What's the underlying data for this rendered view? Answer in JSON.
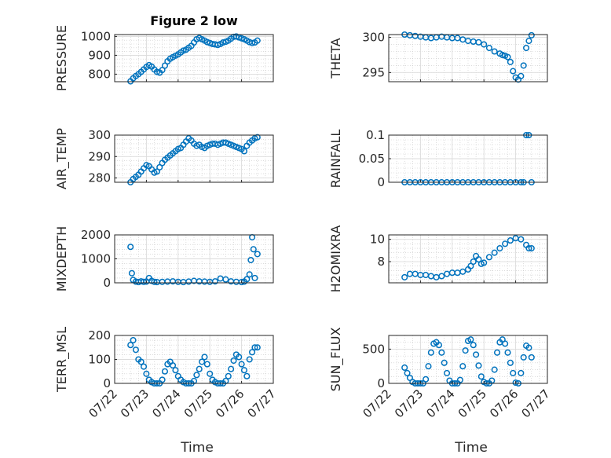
{
  "chart_data": [
    {
      "type": "scatter",
      "title": "Figure 2 low",
      "ylabel": "PRESSURE",
      "ylim": [
        760,
        1010
      ],
      "yticks": [
        800,
        900,
        1000
      ],
      "ytick_labels": [
        "800",
        "900",
        "1000"
      ],
      "xlim": [
        "07/22",
        "07/27"
      ],
      "grid": true,
      "series": [
        {
          "x": [
            "07/22 12:00",
            "07/22 14:00",
            "07/22 16:00",
            "07/22 18:00",
            "07/22 20:00",
            "07/22 22:00",
            "07/23 00:00",
            "07/23 02:00",
            "07/23 04:00",
            "07/23 06:00",
            "07/23 08:00",
            "07/23 10:00",
            "07/23 12:00",
            "07/23 14:00",
            "07/23 16:00",
            "07/23 18:00",
            "07/23 20:00",
            "07/23 22:00",
            "07/24 00:00",
            "07/24 02:00",
            "07/24 04:00",
            "07/24 06:00",
            "07/24 08:00",
            "07/24 10:00",
            "07/24 12:00",
            "07/24 14:00",
            "07/24 16:00",
            "07/24 18:00",
            "07/24 20:00",
            "07/24 22:00",
            "07/25 00:00",
            "07/25 02:00",
            "07/25 04:00",
            "07/25 06:00",
            "07/25 08:00",
            "07/25 10:00",
            "07/25 12:00",
            "07/25 14:00",
            "07/25 16:00",
            "07/25 18:00",
            "07/25 20:00",
            "07/25 22:00",
            "07/26 00:00",
            "07/26 02:00",
            "07/26 04:00",
            "07/26 06:00",
            "07/26 08:00",
            "07/26 10:00",
            "07/26 12:00"
          ],
          "y": [
            762,
            778,
            790,
            800,
            812,
            825,
            838,
            848,
            840,
            825,
            812,
            808,
            822,
            845,
            868,
            882,
            890,
            898,
            905,
            915,
            925,
            930,
            940,
            950,
            968,
            985,
            992,
            985,
            978,
            970,
            965,
            960,
            958,
            955,
            960,
            968,
            972,
            978,
            988,
            998,
            1000,
            995,
            990,
            985,
            978,
            970,
            965,
            968,
            978
          ]
        }
      ]
    },
    {
      "type": "scatter",
      "ylabel": "THETA",
      "ylim": [
        293.7,
        300.4
      ],
      "yticks": [
        295,
        300
      ],
      "ytick_labels": [
        "295",
        "300"
      ],
      "xlim": [
        "07/22",
        "07/27"
      ],
      "grid": true,
      "series": [
        {
          "x": [
            "07/22 12:00",
            "07/22 16:00",
            "07/22 20:00",
            "07/23 00:00",
            "07/23 04:00",
            "07/23 08:00",
            "07/23 12:00",
            "07/23 16:00",
            "07/23 20:00",
            "07/24 00:00",
            "07/24 04:00",
            "07/24 08:00",
            "07/24 12:00",
            "07/24 16:00",
            "07/24 20:00",
            "07/25 00:00",
            "07/25 04:00",
            "07/25 08:00",
            "07/25 12:00",
            "07/25 14:00",
            "07/25 16:00",
            "07/25 18:00",
            "07/25 20:00",
            "07/25 22:00",
            "07/26 00:00",
            "07/26 02:00",
            "07/26 04:00",
            "07/26 06:00",
            "07/26 08:00",
            "07/26 10:00",
            "07/26 12:00"
          ],
          "y": [
            300.4,
            300.3,
            300.2,
            300.1,
            300.0,
            299.9,
            300.0,
            300.1,
            300.0,
            299.9,
            299.9,
            299.7,
            299.5,
            299.4,
            299.3,
            299.0,
            298.5,
            298.0,
            297.7,
            297.5,
            297.4,
            297.2,
            296.5,
            295.2,
            294.3,
            294.0,
            294.5,
            296.0,
            298.5,
            299.5,
            300.3
          ]
        }
      ]
    },
    {
      "type": "scatter",
      "ylabel": "AIR_TEMP",
      "ylim": [
        278,
        300
      ],
      "yticks": [
        280,
        290,
        300
      ],
      "ytick_labels": [
        "280",
        "290",
        "300"
      ],
      "xlim": [
        "07/22",
        "07/27"
      ],
      "grid": true,
      "series": [
        {
          "x": [
            "07/22 12:00",
            "07/22 14:00",
            "07/22 16:00",
            "07/22 18:00",
            "07/22 20:00",
            "07/22 22:00",
            "07/23 00:00",
            "07/23 02:00",
            "07/23 04:00",
            "07/23 06:00",
            "07/23 08:00",
            "07/23 10:00",
            "07/23 12:00",
            "07/23 14:00",
            "07/23 16:00",
            "07/23 18:00",
            "07/23 20:00",
            "07/23 22:00",
            "07/24 00:00",
            "07/24 02:00",
            "07/24 04:00",
            "07/24 06:00",
            "07/24 08:00",
            "07/24 10:00",
            "07/24 12:00",
            "07/24 14:00",
            "07/24 16:00",
            "07/24 18:00",
            "07/24 20:00",
            "07/24 22:00",
            "07/25 00:00",
            "07/25 02:00",
            "07/25 04:00",
            "07/25 06:00",
            "07/25 08:00",
            "07/25 10:00",
            "07/25 12:00",
            "07/25 14:00",
            "07/25 16:00",
            "07/25 18:00",
            "07/25 20:00",
            "07/25 22:00",
            "07/26 00:00",
            "07/26 02:00",
            "07/26 04:00",
            "07/26 06:00",
            "07/26 08:00",
            "07/26 10:00",
            "07/26 12:00"
          ],
          "y": [
            278,
            279.5,
            280.5,
            281.5,
            283,
            284.5,
            286,
            285.5,
            284,
            282.5,
            283,
            285,
            287,
            288.5,
            289.5,
            290.5,
            291.5,
            292.5,
            293.5,
            294,
            295.5,
            297,
            298.5,
            297.5,
            296,
            295,
            295.5,
            294.5,
            294,
            295,
            295.5,
            296,
            296,
            295.5,
            296,
            296.5,
            296.5,
            296,
            295.5,
            295,
            294.5,
            294,
            293.5,
            292.5,
            295,
            296.5,
            297.5,
            298.5,
            299
          ]
        }
      ]
    },
    {
      "type": "scatter",
      "ylabel": "RAINFALL",
      "ylim": [
        0,
        0.1
      ],
      "yticks": [
        0,
        0.05,
        0.1
      ],
      "ytick_labels": [
        "0",
        "0.05",
        "0.1"
      ],
      "xlim": [
        "07/22",
        "07/27"
      ],
      "grid": true,
      "series": [
        {
          "x": [
            "07/22 12:00",
            "07/22 16:00",
            "07/22 20:00",
            "07/23 00:00",
            "07/23 04:00",
            "07/23 08:00",
            "07/23 12:00",
            "07/23 16:00",
            "07/23 20:00",
            "07/24 00:00",
            "07/24 04:00",
            "07/24 08:00",
            "07/24 12:00",
            "07/24 16:00",
            "07/24 20:00",
            "07/25 00:00",
            "07/25 04:00",
            "07/25 08:00",
            "07/25 12:00",
            "07/25 16:00",
            "07/25 20:00",
            "07/26 00:00",
            "07/26 04:00",
            "07/26 06:00",
            "07/26 08:00",
            "07/26 10:00",
            "07/26 12:00"
          ],
          "y": [
            0,
            0,
            0,
            0,
            0,
            0,
            0,
            0,
            0,
            0,
            0,
            0,
            0,
            0,
            0,
            0,
            0,
            0,
            0,
            0,
            0,
            0,
            0,
            0,
            0.1,
            0.1,
            0
          ]
        }
      ]
    },
    {
      "type": "scatter",
      "ylabel": "MIXDEPTH",
      "ylim": [
        0,
        2000
      ],
      "yticks": [
        0,
        1000,
        2000
      ],
      "ytick_labels": [
        "0",
        "1000",
        "2000"
      ],
      "xlim": [
        "07/22",
        "07/27"
      ],
      "grid": true,
      "series": [
        {
          "x": [
            "07/22 12:00",
            "07/22 13:00",
            "07/22 14:00",
            "07/22 16:00",
            "07/22 18:00",
            "07/22 20:00",
            "07/22 22:00",
            "07/23 00:00",
            "07/23 02:00",
            "07/23 04:00",
            "07/23 06:00",
            "07/23 08:00",
            "07/23 12:00",
            "07/23 16:00",
            "07/23 20:00",
            "07/24 00:00",
            "07/24 04:00",
            "07/24 08:00",
            "07/24 12:00",
            "07/24 16:00",
            "07/24 20:00",
            "07/25 00:00",
            "07/25 04:00",
            "07/25 08:00",
            "07/25 12:00",
            "07/25 16:00",
            "07/25 20:00",
            "07/26 00:00",
            "07/26 02:00",
            "07/26 04:00",
            "07/26 06:00",
            "07/26 07:00",
            "07/26 08:00",
            "07/26 09:00",
            "07/26 10:00",
            "07/26 12:00"
          ],
          "y": [
            1500,
            400,
            120,
            50,
            30,
            60,
            40,
            50,
            200,
            80,
            40,
            30,
            40,
            50,
            60,
            40,
            30,
            50,
            80,
            60,
            50,
            40,
            60,
            180,
            140,
            60,
            40,
            30,
            50,
            150,
            350,
            950,
            1900,
            1400,
            200,
            1200
          ]
        }
      ]
    },
    {
      "type": "scatter",
      "ylabel": "H2OMIXRA",
      "ylim": [
        6.1,
        10.4
      ],
      "yticks": [
        8,
        10
      ],
      "ytick_labels": [
        "8",
        "10"
      ],
      "xlim": [
        "07/22",
        "07/27"
      ],
      "grid": true,
      "series": [
        {
          "x": [
            "07/22 12:00",
            "07/22 16:00",
            "07/22 20:00",
            "07/23 00:00",
            "07/23 04:00",
            "07/23 08:00",
            "07/23 12:00",
            "07/23 16:00",
            "07/23 20:00",
            "07/24 00:00",
            "07/24 04:00",
            "07/24 08:00",
            "07/24 12:00",
            "07/24 14:00",
            "07/24 16:00",
            "07/24 18:00",
            "07/24 20:00",
            "07/24 22:00",
            "07/25 00:00",
            "07/25 04:00",
            "07/25 08:00",
            "07/25 12:00",
            "07/25 16:00",
            "07/25 20:00",
            "07/26 00:00",
            "07/26 04:00",
            "07/26 08:00",
            "07/26 10:00",
            "07/26 12:00"
          ],
          "y": [
            6.6,
            6.9,
            6.9,
            6.8,
            6.8,
            6.7,
            6.6,
            6.7,
            6.9,
            7.0,
            7.0,
            7.1,
            7.3,
            7.6,
            8.0,
            8.5,
            8.2,
            7.8,
            7.9,
            8.4,
            8.8,
            9.2,
            9.6,
            9.9,
            10.1,
            10.0,
            9.5,
            9.2,
            9.2
          ]
        }
      ]
    },
    {
      "type": "scatter",
      "ylabel": "TERR_MSL",
      "ylim": [
        0,
        200
      ],
      "yticks": [
        0,
        100,
        200
      ],
      "ytick_labels": [
        "0",
        "100",
        "200"
      ],
      "xlim": [
        "07/22",
        "07/27"
      ],
      "grid": true,
      "series": [
        {
          "x": [
            "07/22 12:00",
            "07/22 14:00",
            "07/22 16:00",
            "07/22 18:00",
            "07/22 20:00",
            "07/22 22:00",
            "07/23 00:00",
            "07/23 02:00",
            "07/23 04:00",
            "07/23 06:00",
            "07/23 08:00",
            "07/23 10:00",
            "07/23 12:00",
            "07/23 14:00",
            "07/23 16:00",
            "07/23 18:00",
            "07/23 20:00",
            "07/23 22:00",
            "07/24 00:00",
            "07/24 02:00",
            "07/24 04:00",
            "07/24 06:00",
            "07/24 08:00",
            "07/24 10:00",
            "07/24 12:00",
            "07/24 14:00",
            "07/24 16:00",
            "07/24 18:00",
            "07/24 20:00",
            "07/24 22:00",
            "07/25 00:00",
            "07/25 02:00",
            "07/25 04:00",
            "07/25 06:00",
            "07/25 08:00",
            "07/25 10:00",
            "07/25 12:00",
            "07/25 14:00",
            "07/25 16:00",
            "07/25 18:00",
            "07/25 20:00",
            "07/25 22:00",
            "07/26 00:00",
            "07/26 02:00",
            "07/26 04:00",
            "07/26 06:00",
            "07/26 08:00",
            "07/26 10:00",
            "07/26 12:00"
          ],
          "y": [
            160,
            180,
            140,
            100,
            90,
            70,
            40,
            15,
            5,
            0,
            0,
            0,
            15,
            50,
            80,
            90,
            75,
            55,
            30,
            15,
            5,
            0,
            0,
            0,
            10,
            35,
            60,
            90,
            110,
            80,
            40,
            15,
            5,
            0,
            0,
            0,
            10,
            30,
            60,
            95,
            120,
            110,
            80,
            55,
            30,
            100,
            130,
            150,
            150
          ]
        }
      ]
    },
    {
      "type": "scatter",
      "ylabel": "SUN_FLUX",
      "ylim": [
        0,
        700
      ],
      "yticks": [
        0,
        500
      ],
      "ytick_labels": [
        "0",
        "500"
      ],
      "xlim": [
        "07/22",
        "07/27"
      ],
      "grid": true,
      "series": [
        {
          "x": [
            "07/22 12:00",
            "07/22 14:00",
            "07/22 16:00",
            "07/22 18:00",
            "07/22 20:00",
            "07/22 22:00",
            "07/23 00:00",
            "07/23 02:00",
            "07/23 04:00",
            "07/23 06:00",
            "07/23 08:00",
            "07/23 10:00",
            "07/23 12:00",
            "07/23 14:00",
            "07/23 16:00",
            "07/23 18:00",
            "07/23 20:00",
            "07/23 22:00",
            "07/24 00:00",
            "07/24 02:00",
            "07/24 04:00",
            "07/24 06:00",
            "07/24 08:00",
            "07/24 10:00",
            "07/24 12:00",
            "07/24 14:00",
            "07/24 16:00",
            "07/24 18:00",
            "07/24 20:00",
            "07/24 22:00",
            "07/25 00:00",
            "07/25 02:00",
            "07/25 04:00",
            "07/25 06:00",
            "07/25 08:00",
            "07/25 10:00",
            "07/25 12:00",
            "07/25 14:00",
            "07/25 16:00",
            "07/25 18:00",
            "07/25 20:00",
            "07/25 22:00",
            "07/26 00:00",
            "07/26 02:00",
            "07/26 04:00",
            "07/26 06:00",
            "07/26 08:00",
            "07/26 10:00",
            "07/26 12:00"
          ],
          "y": [
            230,
            150,
            80,
            20,
            0,
            0,
            0,
            0,
            60,
            250,
            450,
            580,
            600,
            560,
            450,
            300,
            150,
            40,
            0,
            0,
            0,
            50,
            250,
            480,
            620,
            640,
            560,
            420,
            260,
            100,
            20,
            0,
            0,
            40,
            200,
            450,
            600,
            640,
            580,
            450,
            300,
            150,
            10,
            0,
            150,
            380,
            550,
            520,
            380
          ]
        }
      ]
    }
  ],
  "x_ticks": [
    "07/22",
    "07/23",
    "07/24",
    "07/25",
    "07/26",
    "07/27"
  ],
  "x_axis_label": "Time",
  "colors": {
    "marker": "#0072bd",
    "axis": "#262626",
    "grid": "#c8c8c8"
  }
}
